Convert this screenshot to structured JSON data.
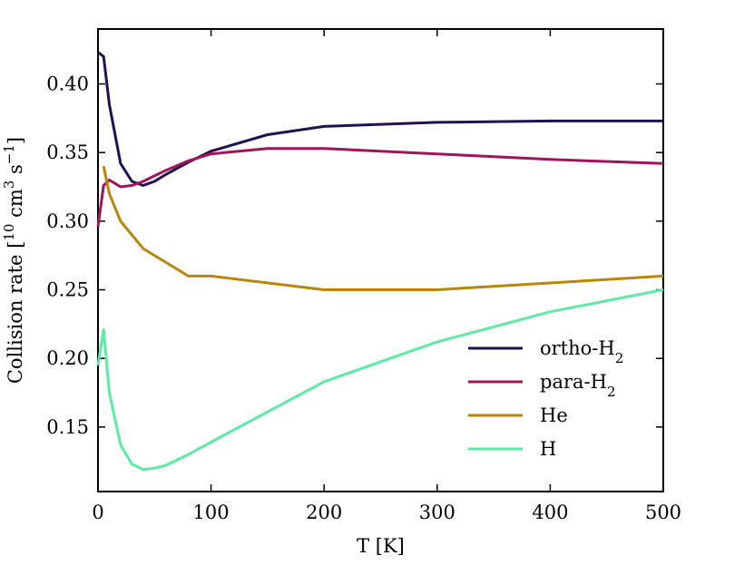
{
  "chart_data": {
    "type": "line",
    "xlabel": "T [K]",
    "ylabel": "Collision rate [10",
    "ylabel_exp1": "10",
    "ylabel_mid": " cm",
    "ylabel_exp2": "3",
    "ylabel_end": " s",
    "ylabel_exp3": "−1",
    "ylabel_close": "]",
    "xlim": [
      0,
      500
    ],
    "ylim": [
      0.103,
      0.44
    ],
    "xticks": [
      0,
      100,
      200,
      300,
      400,
      500
    ],
    "xtick_labels": [
      "0",
      "100",
      "200",
      "300",
      "400",
      "500"
    ],
    "yticks": [
      0.15,
      0.2,
      0.25,
      0.3,
      0.35,
      0.4
    ],
    "ytick_labels": [
      "0.15",
      "0.20",
      "0.25",
      "0.30",
      "0.35",
      "0.40"
    ],
    "grid": false,
    "legend_position": "lower-right",
    "series": [
      {
        "name": "ortho-H",
        "subscript": "2",
        "color": "#22114f",
        "x": [
          0,
          5,
          10,
          20,
          30,
          40,
          50,
          60,
          80,
          100,
          150,
          200,
          300,
          400,
          500
        ],
        "y": [
          0.423,
          0.42,
          0.385,
          0.342,
          0.329,
          0.326,
          0.329,
          0.334,
          0.343,
          0.351,
          0.363,
          0.369,
          0.372,
          0.373,
          0.373
        ]
      },
      {
        "name": "para-H",
        "subscript": "2",
        "color": "#a0155a",
        "x": [
          0,
          5,
          10,
          20,
          30,
          40,
          50,
          60,
          80,
          100,
          150,
          200,
          300,
          400,
          500
        ],
        "y": [
          0.296,
          0.326,
          0.33,
          0.325,
          0.326,
          0.329,
          0.333,
          0.337,
          0.344,
          0.349,
          0.353,
          0.353,
          0.349,
          0.345,
          0.342
        ]
      },
      {
        "name": "He",
        "subscript": "",
        "color": "#b8860b",
        "x": [
          5,
          10,
          20,
          40,
          80,
          100,
          200,
          300,
          400,
          500
        ],
        "y": [
          0.34,
          0.32,
          0.3,
          0.28,
          0.26,
          0.26,
          0.25,
          0.25,
          0.255,
          0.26
        ]
      },
      {
        "name": "H",
        "subscript": "",
        "color": "#5eeaa4",
        "x": [
          0,
          5,
          10,
          20,
          30,
          40,
          50,
          60,
          80,
          100,
          150,
          200,
          300,
          400,
          500
        ],
        "y": [
          0.195,
          0.221,
          0.175,
          0.137,
          0.123,
          0.119,
          0.12,
          0.122,
          0.13,
          0.139,
          0.161,
          0.183,
          0.212,
          0.234,
          0.25
        ]
      }
    ]
  }
}
